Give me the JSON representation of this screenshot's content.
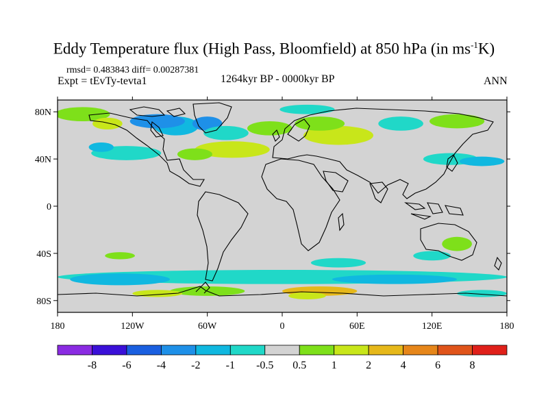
{
  "header": {
    "title_main": "Eddy Temperature flux (High Pass, Bloomfield) at 850 hPa (in ms",
    "title_sup": "-1",
    "title_tail": "K)",
    "rmsd_line": "rmsd= 0.483843 diff= 0.00287381",
    "expt_line": "Expt = tEvTy-tevta1",
    "period": "1264kyr BP - 0000kyr BP",
    "season": "ANN"
  },
  "map": {
    "lat_ticks": [
      {
        "value": 80,
        "label": "80N"
      },
      {
        "value": 40,
        "label": "40N"
      },
      {
        "value": 0,
        "label": "0"
      },
      {
        "value": -40,
        "label": "40S"
      },
      {
        "value": -80,
        "label": "80S"
      }
    ],
    "lon_ticks": [
      {
        "value": -180,
        "label": "180"
      },
      {
        "value": -120,
        "label": "120W"
      },
      {
        "value": -60,
        "label": "60W"
      },
      {
        "value": 0,
        "label": "0"
      },
      {
        "value": 60,
        "label": "60E"
      },
      {
        "value": 120,
        "label": "120E"
      },
      {
        "value": 180,
        "label": "180"
      }
    ],
    "lat_range": [
      -90,
      90
    ],
    "lon_range": [
      -180,
      180
    ],
    "background_color": "#d3d3d3"
  },
  "colorbar": {
    "labels": [
      "-8",
      "-6",
      "-4",
      "-2",
      "-1",
      "-0.5",
      "0.5",
      "1",
      "2",
      "4",
      "6",
      "8"
    ],
    "colors": [
      "#8a2be2",
      "#3a10d8",
      "#1a5fe0",
      "#1e90e8",
      "#10b8e0",
      "#20d8c8",
      "#d3d3d3",
      "#7ee01a",
      "#c8e61a",
      "#e6b81a",
      "#e6861a",
      "#e0541a",
      "#e0201a"
    ]
  },
  "anomaly_regions": [
    {
      "lon": -85,
      "lat": 68,
      "rx": 18,
      "ry": 8,
      "color": "#10b8e0"
    },
    {
      "lon": -100,
      "lat": 72,
      "rx": 22,
      "ry": 6,
      "color": "#1e90e8"
    },
    {
      "lon": -60,
      "lat": 70,
      "rx": 12,
      "ry": 6,
      "color": "#1e90e8"
    },
    {
      "lon": -45,
      "lat": 62,
      "rx": 18,
      "ry": 6,
      "color": "#20d8c8"
    },
    {
      "lon": -160,
      "lat": 78,
      "rx": 22,
      "ry": 6,
      "color": "#7ee01a"
    },
    {
      "lon": -140,
      "lat": 70,
      "rx": 12,
      "ry": 5,
      "color": "#c8e61a"
    },
    {
      "lon": -125,
      "lat": 45,
      "rx": 28,
      "ry": 6,
      "color": "#20d8c8"
    },
    {
      "lon": -145,
      "lat": 50,
      "rx": 10,
      "ry": 4,
      "color": "#10b8e0"
    },
    {
      "lon": -40,
      "lat": 48,
      "rx": 30,
      "ry": 7,
      "color": "#c8e61a"
    },
    {
      "lon": -70,
      "lat": 44,
      "rx": 14,
      "ry": 5,
      "color": "#7ee01a"
    },
    {
      "lon": -10,
      "lat": 66,
      "rx": 18,
      "ry": 6,
      "color": "#7ee01a"
    },
    {
      "lon": 20,
      "lat": 82,
      "rx": 22,
      "ry": 4,
      "color": "#20d8c8"
    },
    {
      "lon": 45,
      "lat": 60,
      "rx": 28,
      "ry": 8,
      "color": "#c8e61a"
    },
    {
      "lon": 30,
      "lat": 70,
      "rx": 20,
      "ry": 6,
      "color": "#7ee01a"
    },
    {
      "lon": 95,
      "lat": 70,
      "rx": 18,
      "ry": 6,
      "color": "#20d8c8"
    },
    {
      "lon": 140,
      "lat": 72,
      "rx": 22,
      "ry": 6,
      "color": "#7ee01a"
    },
    {
      "lon": 135,
      "lat": 40,
      "rx": 22,
      "ry": 5,
      "color": "#20d8c8"
    },
    {
      "lon": 160,
      "lat": 38,
      "rx": 18,
      "ry": 4,
      "color": "#10b8e0"
    },
    {
      "lon": -130,
      "lat": -42,
      "rx": 12,
      "ry": 3,
      "color": "#7ee01a"
    },
    {
      "lon": 45,
      "lat": -48,
      "rx": 22,
      "ry": 4,
      "color": "#20d8c8"
    },
    {
      "lon": 120,
      "lat": -42,
      "rx": 15,
      "ry": 4,
      "color": "#20d8c8"
    },
    {
      "lon": 140,
      "lat": -32,
      "rx": 12,
      "ry": 6,
      "color": "#7ee01a"
    },
    {
      "lon": 0,
      "lat": -60,
      "rx": 180,
      "ry": 6,
      "color": "#20d8c8"
    },
    {
      "lon": -130,
      "lat": -62,
      "rx": 40,
      "ry": 5,
      "color": "#10b8e0"
    },
    {
      "lon": 90,
      "lat": -62,
      "rx": 50,
      "ry": 4,
      "color": "#10b8e0"
    },
    {
      "lon": -60,
      "lat": -72,
      "rx": 30,
      "ry": 4,
      "color": "#7ee01a"
    },
    {
      "lon": 30,
      "lat": -72,
      "rx": 30,
      "ry": 4,
      "color": "#e6b81a"
    },
    {
      "lon": 20,
      "lat": -76,
      "rx": 15,
      "ry": 3,
      "color": "#c8e61a"
    },
    {
      "lon": -100,
      "lat": -74,
      "rx": 20,
      "ry": 3,
      "color": "#c8e61a"
    },
    {
      "lon": 160,
      "lat": -74,
      "rx": 20,
      "ry": 3,
      "color": "#20d8c8"
    }
  ]
}
